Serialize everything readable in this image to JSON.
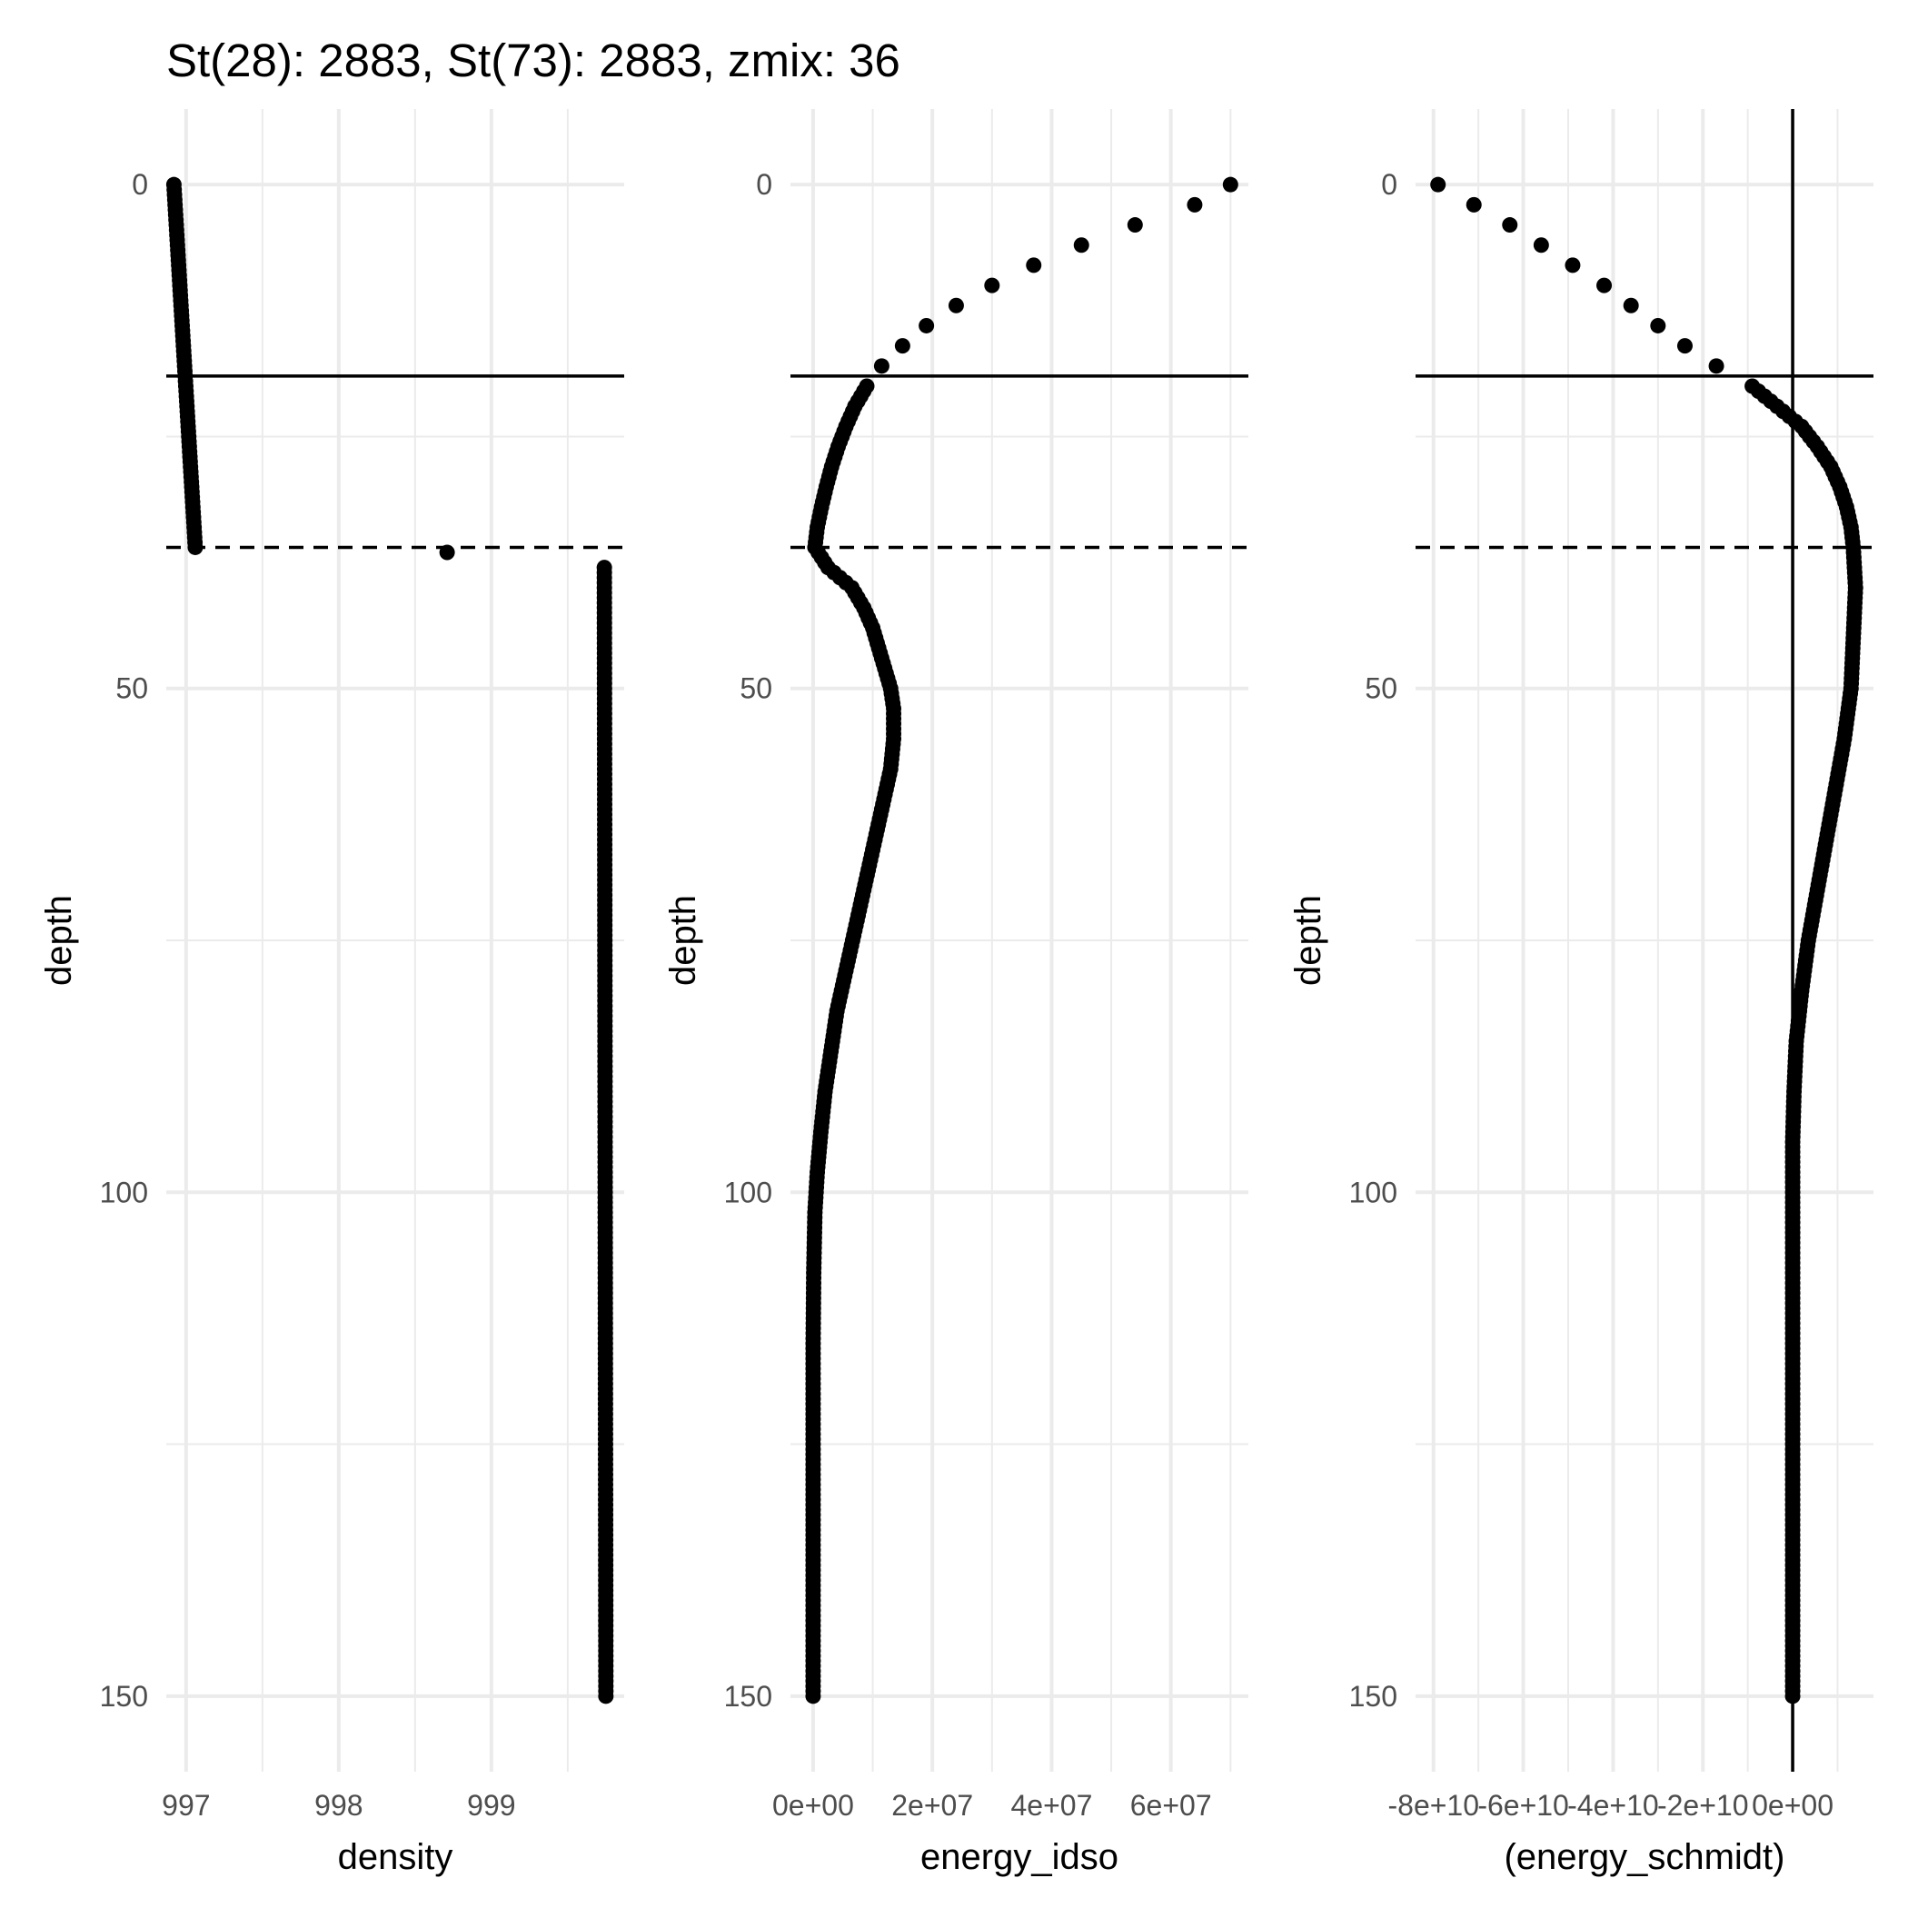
{
  "title": "St(28): 2883, St(73): 2883, zmix: 36",
  "chart_data": [
    {
      "type": "scatter",
      "xlabel": "density",
      "ylabel": "depth",
      "y_reversed": true,
      "ylim": [
        -7.5,
        157.5
      ],
      "yticks": [
        0,
        50,
        100,
        150
      ],
      "ytick_labels": [
        "0",
        "50",
        "100",
        "150"
      ],
      "xlim": [
        996.87,
        999.87
      ],
      "xticks": [
        997,
        998,
        999
      ],
      "xtick_labels": [
        "997",
        "998",
        "999"
      ],
      "hlines": [
        {
          "y": 19,
          "style": "solid"
        },
        {
          "y": 36,
          "style": "dashed"
        }
      ],
      "vlines": [],
      "profile": [
        [
          0,
          996.92
        ],
        [
          36,
          997.06
        ],
        [
          36.8,
          998.71
        ],
        [
          38,
          999.74
        ],
        [
          150,
          999.75
        ]
      ]
    },
    {
      "type": "scatter",
      "xlabel": "energy_idso",
      "ylabel": "depth",
      "y_reversed": true,
      "ylim": [
        -7.5,
        157.5
      ],
      "yticks": [
        0,
        50,
        100,
        150
      ],
      "ytick_labels": [
        "0",
        "50",
        "100",
        "150"
      ],
      "xlim": [
        -3800000.0,
        73000000.0
      ],
      "xticks": [
        0,
        20000000,
        40000000,
        60000000
      ],
      "xtick_labels": [
        "0e+00",
        "2e+07",
        "4e+07",
        "6e+07"
      ],
      "hlines": [
        {
          "y": 19,
          "style": "solid"
        },
        {
          "y": 36,
          "style": "dashed"
        }
      ],
      "vlines": [],
      "profile": [
        [
          0,
          70000000.0
        ],
        [
          2,
          64000000.0
        ],
        [
          4,
          54000000.0
        ],
        [
          6,
          45000000.0
        ],
        [
          8,
          37000000.0
        ],
        [
          10,
          30000000.0
        ],
        [
          12,
          24000000.0
        ],
        [
          14,
          19000000.0
        ],
        [
          16,
          15000000.0
        ],
        [
          18,
          11500000.0
        ],
        [
          20,
          9000000.0
        ],
        [
          22,
          7000000.0
        ],
        [
          24,
          5500000.0
        ],
        [
          26,
          4200000.0
        ],
        [
          28,
          3100000.0
        ],
        [
          30,
          2200000.0
        ],
        [
          32,
          1400000.0
        ],
        [
          34,
          700000.0
        ],
        [
          36,
          300000.0
        ],
        [
          38,
          2500000.0
        ],
        [
          40,
          6500000.0
        ],
        [
          42,
          8500000.0
        ],
        [
          44,
          10000000.0
        ],
        [
          46,
          11000000.0
        ],
        [
          48,
          12000000.0
        ],
        [
          50,
          13000000.0
        ],
        [
          52,
          13500000.0
        ],
        [
          55,
          13500000.0
        ],
        [
          58,
          13000000.0
        ],
        [
          62,
          11500000.0
        ],
        [
          66,
          10000000.0
        ],
        [
          70,
          8500000.0
        ],
        [
          74,
          7000000.0
        ],
        [
          78,
          5500000.0
        ],
        [
          82,
          4000000.0
        ],
        [
          86,
          3000000.0
        ],
        [
          90,
          2000000.0
        ],
        [
          94,
          1300000.0
        ],
        [
          98,
          700000.0
        ],
        [
          102,
          300000.0
        ],
        [
          108,
          100000.0
        ],
        [
          115,
          0
        ],
        [
          150,
          0
        ]
      ]
    },
    {
      "type": "scatter",
      "xlabel": "(energy_schmidt)",
      "ylabel": "depth",
      "y_reversed": true,
      "ylim": [
        -7.5,
        157.5
      ],
      "yticks": [
        0,
        50,
        100,
        150
      ],
      "ytick_labels": [
        "0",
        "50",
        "100",
        "150"
      ],
      "xlim": [
        -84000000000.0,
        18000000000.0
      ],
      "xticks": [
        -80000000000,
        -60000000000,
        -40000000000,
        -20000000000,
        0
      ],
      "xtick_labels": [
        "-8e+10",
        "-6e+10",
        "-4e+10",
        "-2e+10",
        "0e+00"
      ],
      "hlines": [
        {
          "y": 19,
          "style": "solid"
        },
        {
          "y": 36,
          "style": "dashed"
        }
      ],
      "vlines": [
        {
          "x": 0,
          "style": "solid"
        }
      ],
      "profile": [
        [
          0,
          -79000000000.0
        ],
        [
          2,
          -71000000000.0
        ],
        [
          4,
          -63000000000.0
        ],
        [
          6,
          -56000000000.0
        ],
        [
          8,
          -49000000000.0
        ],
        [
          10,
          -42000000000.0
        ],
        [
          12,
          -36000000000.0
        ],
        [
          14,
          -30000000000.0
        ],
        [
          16,
          -24000000000.0
        ],
        [
          18,
          -17000000000.0
        ],
        [
          20,
          -9000000000.0
        ],
        [
          22,
          -3500000000.0
        ],
        [
          24,
          2000000000.0
        ],
        [
          26,
          5500000000.0
        ],
        [
          28,
          8500000000.0
        ],
        [
          30,
          10500000000.0
        ],
        [
          32,
          12000000000.0
        ],
        [
          34,
          13000000000.0
        ],
        [
          36,
          13500000000.0
        ],
        [
          40,
          14000000000.0
        ],
        [
          45,
          13500000000.0
        ],
        [
          50,
          13000000000.0
        ],
        [
          55,
          11500000000.0
        ],
        [
          60,
          9500000000.0
        ],
        [
          65,
          7500000000.0
        ],
        [
          70,
          5500000000.0
        ],
        [
          75,
          3500000000.0
        ],
        [
          80,
          2000000000.0
        ],
        [
          85,
          800000000.0
        ],
        [
          90,
          300000000.0
        ],
        [
          95,
          0
        ],
        [
          150,
          0
        ]
      ]
    }
  ]
}
